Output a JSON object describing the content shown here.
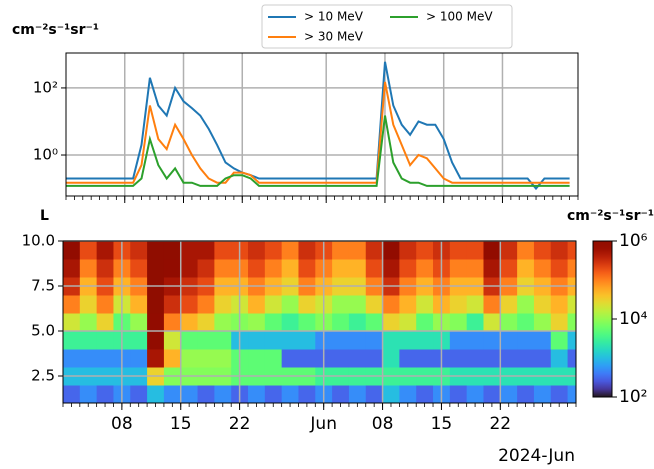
{
  "chart_data": [
    {
      "type": "line",
      "y_label": "cm⁻²s⁻¹sr⁻¹",
      "log_y": true,
      "grid": true,
      "legend": "upper center",
      "xlim": [
        "2024-05-01",
        "2024-07-01"
      ],
      "ylim": [
        0.06,
        1100
      ],
      "yticks": [
        {
          "value": 1,
          "label": "10⁰"
        },
        {
          "value": 100,
          "label": "10²"
        }
      ],
      "x": [
        "2024-05-01",
        "2024-05-02",
        "2024-05-03",
        "2024-05-04",
        "2024-05-05",
        "2024-05-06",
        "2024-05-07",
        "2024-05-08",
        "2024-05-09",
        "2024-05-10",
        "2024-05-11",
        "2024-05-12",
        "2024-05-13",
        "2024-05-14",
        "2024-05-15",
        "2024-05-16",
        "2024-05-17",
        "2024-05-18",
        "2024-05-19",
        "2024-05-20",
        "2024-05-21",
        "2024-05-22",
        "2024-05-23",
        "2024-05-24",
        "2024-05-25",
        "2024-05-26",
        "2024-05-27",
        "2024-05-28",
        "2024-05-29",
        "2024-05-30",
        "2024-05-31",
        "2024-06-01",
        "2024-06-02",
        "2024-06-03",
        "2024-06-04",
        "2024-06-05",
        "2024-06-06",
        "2024-06-07",
        "2024-06-08",
        "2024-06-09",
        "2024-06-10",
        "2024-06-11",
        "2024-06-12",
        "2024-06-13",
        "2024-06-14",
        "2024-06-15",
        "2024-06-16",
        "2024-06-17",
        "2024-06-18",
        "2024-06-19",
        "2024-06-20",
        "2024-06-21",
        "2024-06-22",
        "2024-06-23",
        "2024-06-24",
        "2024-06-25",
        "2024-06-26",
        "2024-06-27",
        "2024-06-28",
        "2024-06-29",
        "2024-06-30"
      ],
      "series": [
        {
          "name": "> 10 MeV",
          "color": "#1f77b4",
          "values": [
            0.2,
            0.2,
            0.2,
            0.2,
            0.2,
            0.2,
            0.2,
            0.2,
            0.2,
            2,
            200,
            30,
            15,
            100,
            40,
            25,
            15,
            6,
            2,
            0.6,
            0.4,
            0.3,
            0.25,
            0.2,
            0.2,
            0.2,
            0.2,
            0.2,
            0.2,
            0.2,
            0.2,
            0.2,
            0.2,
            0.2,
            0.2,
            0.2,
            0.2,
            0.2,
            600,
            30,
            8,
            4,
            10,
            8,
            8,
            3,
            0.6,
            0.2,
            0.2,
            0.2,
            0.2,
            0.2,
            0.2,
            0.2,
            0.2,
            0.2,
            0.1,
            0.2,
            0.2,
            0.2,
            0.2
          ]
        },
        {
          "name": "> 30 MeV",
          "color": "#ff7f0e",
          "values": [
            0.15,
            0.15,
            0.15,
            0.15,
            0.15,
            0.15,
            0.15,
            0.15,
            0.15,
            0.5,
            30,
            3,
            1.5,
            8,
            3,
            1,
            0.4,
            0.2,
            0.15,
            0.15,
            0.3,
            0.3,
            0.25,
            0.15,
            0.15,
            0.15,
            0.15,
            0.15,
            0.15,
            0.15,
            0.15,
            0.15,
            0.15,
            0.15,
            0.15,
            0.15,
            0.15,
            0.15,
            150,
            8,
            2,
            0.5,
            1,
            0.8,
            0.4,
            0.2,
            0.15,
            0.15,
            0.15,
            0.15,
            0.15,
            0.15,
            0.15,
            0.15,
            0.15,
            0.15,
            0.15,
            0.15,
            0.15,
            0.15,
            0.15
          ]
        },
        {
          "name": "> 100 MeV",
          "color": "#2ca02c",
          "values": [
            0.12,
            0.12,
            0.12,
            0.12,
            0.12,
            0.12,
            0.12,
            0.12,
            0.12,
            0.2,
            3,
            0.5,
            0.2,
            0.4,
            0.15,
            0.15,
            0.12,
            0.12,
            0.12,
            0.2,
            0.25,
            0.25,
            0.2,
            0.12,
            0.12,
            0.12,
            0.12,
            0.12,
            0.12,
            0.12,
            0.12,
            0.12,
            0.12,
            0.12,
            0.12,
            0.12,
            0.12,
            0.12,
            15,
            0.6,
            0.2,
            0.15,
            0.15,
            0.12,
            0.12,
            0.12,
            0.12,
            0.12,
            0.12,
            0.12,
            0.12,
            0.12,
            0.12,
            0.12,
            0.12,
            0.12,
            0.12,
            0.12,
            0.12,
            0.12,
            0.12
          ]
        }
      ]
    },
    {
      "type": "heatmap",
      "y_label": "L",
      "colorbar_label": "cm⁻²s⁻¹sr⁻¹",
      "colormap": "turbo",
      "log_color": true,
      "grid": true,
      "xlim": [
        "2024-05-01",
        "2024-07-01"
      ],
      "ylim": [
        1,
        10
      ],
      "xticks": [
        {
          "value": "2024-05-08",
          "label": "08"
        },
        {
          "value": "2024-05-15",
          "label": "15"
        },
        {
          "value": "2024-05-22",
          "label": "22"
        },
        {
          "value": "2024-06-01",
          "label": "Jun"
        },
        {
          "value": "2024-06-08",
          "label": "08"
        },
        {
          "value": "2024-06-15",
          "label": "15"
        },
        {
          "value": "2024-06-22",
          "label": "22"
        }
      ],
      "x_offset_label": "2024-Jun",
      "yticks": [
        2.5,
        {
          "value": 5,
          "label": "5.0"
        },
        7.5,
        {
          "value": 10,
          "label": "10.0"
        }
      ],
      "clim": [
        100,
        1000000
      ],
      "cticks": [
        {
          "value": 100,
          "label": "10²"
        },
        {
          "value": 10000,
          "label": "10⁴"
        },
        {
          "value": 1000000,
          "label": "10⁶"
        }
      ],
      "xbins": [
        "2024-05-01",
        "2024-05-03",
        "2024-05-05",
        "2024-05-07",
        "2024-05-09",
        "2024-05-11",
        "2024-05-13",
        "2024-05-15",
        "2024-05-17",
        "2024-05-19",
        "2024-05-21",
        "2024-05-23",
        "2024-05-25",
        "2024-05-27",
        "2024-05-29",
        "2024-05-31",
        "2024-06-02",
        "2024-06-04",
        "2024-06-06",
        "2024-06-08",
        "2024-06-10",
        "2024-06-12",
        "2024-06-14",
        "2024-06-16",
        "2024-06-18",
        "2024-06-20",
        "2024-06-22",
        "2024-06-24",
        "2024-06-26",
        "2024-06-28",
        "2024-06-30",
        "2024-07-01"
      ],
      "ybins": [
        1,
        2,
        3,
        4,
        5,
        6,
        7,
        8,
        9,
        10
      ],
      "values": [
        [
          300.0,
          500.0,
          300.0,
          500.0,
          300.0,
          1000.0,
          500.0,
          500.0,
          300.0,
          500.0,
          300.0,
          500.0,
          300.0,
          500.0,
          300.0,
          500.0,
          300.0,
          500.0,
          300.0,
          1000.0,
          500.0,
          300.0,
          500.0,
          300.0,
          500.0,
          300.0,
          500.0,
          300.0,
          500.0,
          300.0,
          500.0
        ],
        [
          1000.0,
          1000.0,
          1000.0,
          1000.0,
          1000.0,
          30000.0,
          8000.0,
          8000.0,
          8000.0,
          8000.0,
          5000.0,
          5000.0,
          5000.0,
          5000.0,
          5000.0,
          3000.0,
          3000.0,
          3000.0,
          3000.0,
          3000.0,
          3000.0,
          3000.0,
          3000.0,
          2000.0,
          2000.0,
          2000.0,
          2000.0,
          2000.0,
          2000.0,
          2000.0,
          2000.0
        ],
        [
          500.0,
          500.0,
          500.0,
          500.0,
          500.0,
          500000.0,
          50000.0,
          10000.0,
          10000.0,
          10000.0,
          5000.0,
          5000.0,
          5000.0,
          300.0,
          300.0,
          300.0,
          300.0,
          300.0,
          300.0,
          2000.0,
          300.0,
          300.0,
          300.0,
          300.0,
          300.0,
          300.0,
          300.0,
          300.0,
          300.0,
          1000.0,
          300.0
        ],
        [
          3000.0,
          3000.0,
          3000.0,
          3000.0,
          3000.0,
          800000.0,
          20000.0,
          5000.0,
          5000.0,
          5000.0,
          1000.0,
          1000.0,
          1000.0,
          1000.0,
          1000.0,
          500.0,
          500.0,
          500.0,
          500.0,
          2000.0,
          2000.0,
          2000.0,
          2000.0,
          500.0,
          500.0,
          500.0,
          500.0,
          500.0,
          500.0,
          5000.0,
          1000.0
        ],
        [
          20000.0,
          10000.0,
          30000.0,
          5000.0,
          10000.0,
          800000.0,
          100000.0,
          50000.0,
          30000.0,
          10000.0,
          8000.0,
          10000.0,
          5000.0,
          3000.0,
          5000.0,
          8000.0,
          5000.0,
          3000.0,
          5000.0,
          30000.0,
          20000.0,
          5000.0,
          10000.0,
          8000.0,
          3000.0,
          20000.0,
          8000.0,
          5000.0,
          10000.0,
          30000.0,
          8000.0
        ],
        [
          100000.0,
          30000.0,
          100000.0,
          20000.0,
          50000.0,
          1000000.0,
          300000.0,
          200000.0,
          100000.0,
          30000.0,
          20000.0,
          50000.0,
          20000.0,
          10000.0,
          30000.0,
          20000.0,
          10000.0,
          10000.0,
          30000.0,
          100000.0,
          50000.0,
          20000.0,
          50000.0,
          30000.0,
          20000.0,
          100000.0,
          30000.0,
          10000.0,
          30000.0,
          50000.0,
          20000.0
        ],
        [
          300000.0,
          50000.0,
          200000.0,
          50000.0,
          100000.0,
          1000000.0,
          500000.0,
          300000.0,
          200000.0,
          50000.0,
          50000.0,
          100000.0,
          50000.0,
          30000.0,
          100000.0,
          50000.0,
          30000.0,
          30000.0,
          100000.0,
          300000.0,
          100000.0,
          50000.0,
          100000.0,
          50000.0,
          50000.0,
          300000.0,
          100000.0,
          30000.0,
          50000.0,
          100000.0,
          50000.0
        ],
        [
          500000.0,
          100000.0,
          300000.0,
          100000.0,
          200000.0,
          1000000.0,
          800000.0,
          500000.0,
          300000.0,
          100000.0,
          100000.0,
          200000.0,
          100000.0,
          50000.0,
          200000.0,
          100000.0,
          50000.0,
          50000.0,
          200000.0,
          500000.0,
          200000.0,
          100000.0,
          200000.0,
          100000.0,
          100000.0,
          500000.0,
          200000.0,
          50000.0,
          100000.0,
          200000.0,
          100000.0
        ],
        [
          800000.0,
          200000.0,
          500000.0,
          200000.0,
          300000.0,
          1000000.0,
          1000000.0,
          500000.0,
          500000.0,
          200000.0,
          200000.0,
          300000.0,
          200000.0,
          100000.0,
          300000.0,
          200000.0,
          100000.0,
          100000.0,
          300000.0,
          800000.0,
          300000.0,
          200000.0,
          300000.0,
          200000.0,
          200000.0,
          800000.0,
          300000.0,
          100000.0,
          200000.0,
          300000.0,
          200000.0
        ]
      ]
    }
  ]
}
